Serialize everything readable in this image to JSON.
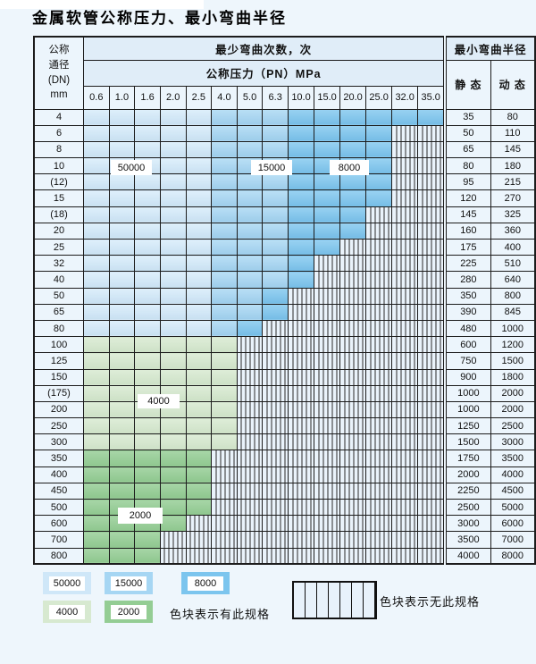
{
  "title": "金属软管公称压力、最小弯曲半径",
  "table": {
    "header": {
      "dn": "公称\n通径\n(DN)\nmm",
      "bend_cycles": "最少弯曲次数，次",
      "pressure": "公称压力（PN）MPa",
      "radius": "最小弯曲半径",
      "static": "静 态",
      "dynamic": "动 态",
      "pressures": [
        "0.6",
        "1.0",
        "1.6",
        "2.0",
        "2.5",
        "4.0",
        "5.0",
        "6.3",
        "10.0",
        "15.0",
        "20.0",
        "25.0",
        "32.0",
        "35.0"
      ]
    },
    "rows": [
      {
        "dn": "4",
        "last": 14,
        "scheme": "blue",
        "static": "35",
        "dynamic": "80"
      },
      {
        "dn": "6",
        "last": 12,
        "scheme": "blue",
        "static": "50",
        "dynamic": "110"
      },
      {
        "dn": "8",
        "last": 12,
        "scheme": "blue",
        "static": "65",
        "dynamic": "145"
      },
      {
        "dn": "10",
        "last": 12,
        "scheme": "blue",
        "static": "80",
        "dynamic": "180"
      },
      {
        "dn": "(12)",
        "last": 12,
        "scheme": "blue",
        "static": "95",
        "dynamic": "215"
      },
      {
        "dn": "15",
        "last": 12,
        "scheme": "blue",
        "static": "120",
        "dynamic": "270"
      },
      {
        "dn": "(18)",
        "last": 11,
        "scheme": "blue",
        "static": "145",
        "dynamic": "325"
      },
      {
        "dn": "20",
        "last": 11,
        "scheme": "blue",
        "static": "160",
        "dynamic": "360"
      },
      {
        "dn": "25",
        "last": 10,
        "scheme": "blue",
        "static": "175",
        "dynamic": "400"
      },
      {
        "dn": "32",
        "last": 9,
        "scheme": "blue",
        "static": "225",
        "dynamic": "510"
      },
      {
        "dn": "40",
        "last": 9,
        "scheme": "blue",
        "static": "280",
        "dynamic": "640"
      },
      {
        "dn": "50",
        "last": 8,
        "scheme": "blue",
        "static": "350",
        "dynamic": "800"
      },
      {
        "dn": "65",
        "last": 8,
        "scheme": "blue",
        "static": "390",
        "dynamic": "845"
      },
      {
        "dn": "80",
        "last": 7,
        "scheme": "blue",
        "static": "480",
        "dynamic": "1000"
      },
      {
        "dn": "100",
        "last": 6,
        "scheme": "green4000",
        "static": "600",
        "dynamic": "1200"
      },
      {
        "dn": "125",
        "last": 6,
        "scheme": "green4000",
        "static": "750",
        "dynamic": "1500"
      },
      {
        "dn": "150",
        "last": 6,
        "scheme": "green4000",
        "static": "900",
        "dynamic": "1800"
      },
      {
        "dn": "(175)",
        "last": 6,
        "scheme": "green4000",
        "static": "1000",
        "dynamic": "2000"
      },
      {
        "dn": "200",
        "last": 6,
        "scheme": "green4000",
        "static": "1000",
        "dynamic": "2000"
      },
      {
        "dn": "250",
        "last": 6,
        "scheme": "green4000",
        "static": "1250",
        "dynamic": "2500"
      },
      {
        "dn": "300",
        "last": 6,
        "scheme": "green4000",
        "static": "1500",
        "dynamic": "3000"
      },
      {
        "dn": "350",
        "last": 5,
        "scheme": "green2000",
        "static": "1750",
        "dynamic": "3500"
      },
      {
        "dn": "400",
        "last": 5,
        "scheme": "green2000",
        "static": "2000",
        "dynamic": "4000"
      },
      {
        "dn": "450",
        "last": 5,
        "scheme": "green2000",
        "static": "2250",
        "dynamic": "4500"
      },
      {
        "dn": "500",
        "last": 5,
        "scheme": "green2000",
        "static": "2500",
        "dynamic": "5000"
      },
      {
        "dn": "600",
        "last": 4,
        "scheme": "green2000",
        "static": "3000",
        "dynamic": "6000"
      },
      {
        "dn": "700",
        "last": 3,
        "scheme": "green2000",
        "static": "3500",
        "dynamic": "7000"
      },
      {
        "dn": "800",
        "last": 3,
        "scheme": "green2000",
        "static": "4000",
        "dynamic": "8000"
      }
    ]
  },
  "region_labels": {
    "l50000": "50000",
    "l15000": "15000",
    "l8000": "8000",
    "l4000": "4000",
    "l2000": "2000"
  },
  "legend": {
    "swatches": [
      {
        "label": "50000",
        "color": "#cfe7f8"
      },
      {
        "label": "15000",
        "color": "#a6d6f3"
      },
      {
        "label": "8000",
        "color": "#7cc5ee"
      },
      {
        "label": "4000",
        "color": "#d7e9d0"
      },
      {
        "label": "2000",
        "color": "#94cd94"
      }
    ],
    "has_spec_text": "色块表示有此规格",
    "no_spec_text": "色块表示无此规格"
  },
  "colors": {
    "blue_light": "#d5ebfa",
    "blue_mid": "#a6d6f3",
    "blue_dark": "#7cc5ee",
    "green_light": "#d7e9d0",
    "green_dark": "#94cd94",
    "hatch_bg": "#eaf3fb",
    "cell_bg": "#ecf5fc"
  }
}
